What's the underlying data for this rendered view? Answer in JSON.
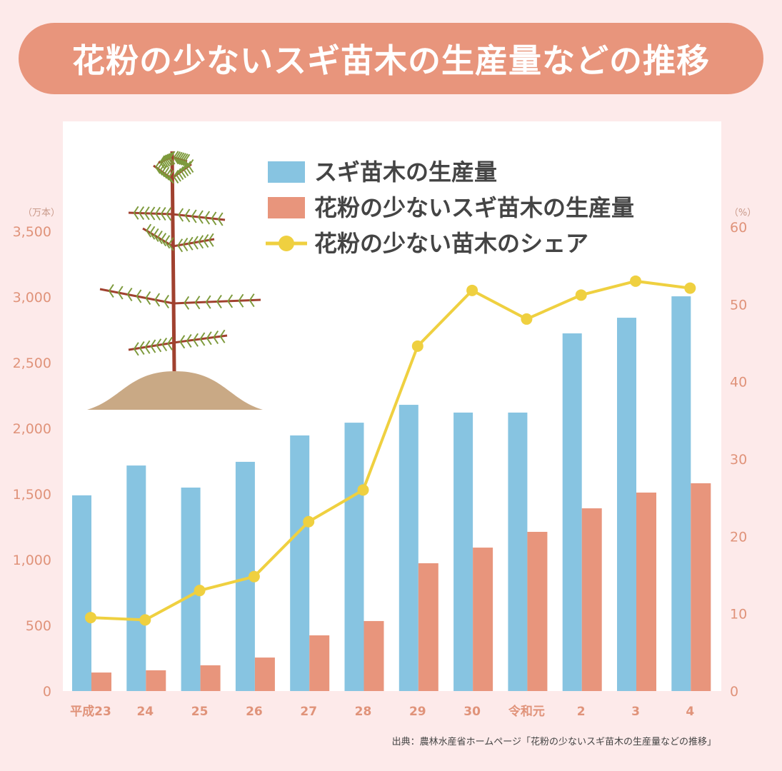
{
  "chart_data": {
    "type": "bar+line",
    "title": "花粉の少ないスギ苗木の生産量などの推移",
    "categories": [
      "平成23",
      "24",
      "25",
      "26",
      "27",
      "28",
      "29",
      "30",
      "令和元",
      "2",
      "3",
      "4"
    ],
    "left_axis": {
      "unit": "（万本）",
      "range": [
        0,
        3500
      ],
      "ticks": [
        0,
        500,
        1000,
        1500,
        2000,
        2500,
        3000,
        3500
      ],
      "tick_labels": [
        "0",
        "500",
        "1,000",
        "1,500",
        "2,000",
        "2,500",
        "3,000",
        "3,500"
      ]
    },
    "right_axis": {
      "unit": "（%）",
      "range": [
        0,
        60
      ],
      "ticks": [
        0,
        10,
        20,
        30,
        40,
        50,
        60
      ],
      "tick_labels": [
        "0",
        "10",
        "20",
        "30",
        "40",
        "50",
        "60"
      ]
    },
    "series": [
      {
        "name": "スギ苗木の生産量",
        "type": "bar",
        "axis": "left",
        "color": "#87c4e1",
        "values": [
          1490,
          1717,
          1549,
          1745,
          1946,
          2043,
          2179,
          2120,
          2120,
          2723,
          2842,
          3005
        ]
      },
      {
        "name": "花粉の少ないスギ苗木の生産量",
        "type": "bar",
        "axis": "left",
        "color": "#e8957c",
        "values": [
          141,
          158,
          196,
          255,
          424,
          533,
          973,
          1092,
          1212,
          1391,
          1511,
          1582
        ]
      },
      {
        "name": "花粉の少ない苗木のシェア",
        "type": "line",
        "axis": "right",
        "color": "#efd040",
        "values": [
          9.5,
          9.2,
          13.0,
          14.8,
          21.9,
          26.0,
          44.6,
          51.8,
          48.1,
          51.2,
          53.0,
          52.1
        ]
      }
    ],
    "legend": "top-right",
    "grid": false
  },
  "source": "出典：農林水産省ホームページ「花粉の少ないスギ苗木の生産量などの推移」",
  "colors": {
    "background": "#fdeaea",
    "title_bg": "#e8957c",
    "axis_text": "#e0937a"
  }
}
